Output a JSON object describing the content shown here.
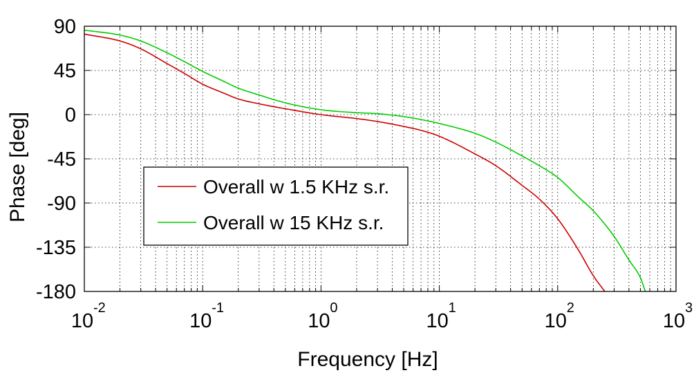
{
  "chart_data": {
    "type": "line",
    "title": "",
    "xlabel": "Frequency   [Hz]",
    "ylabel": "Phase   [deg]",
    "xscale": "log",
    "xlim": [
      0.01,
      1000
    ],
    "ylim": [
      -180,
      90
    ],
    "x_ticks": [
      {
        "base": "10",
        "exp": "-2"
      },
      {
        "base": "10",
        "exp": "-1"
      },
      {
        "base": "10",
        "exp": "0"
      },
      {
        "base": "10",
        "exp": "1"
      },
      {
        "base": "10",
        "exp": "2"
      },
      {
        "base": "10",
        "exp": "3"
      }
    ],
    "y_ticks": [
      "90",
      "45",
      "0",
      "-45",
      "-90",
      "-135",
      "-180"
    ],
    "y_tick_values": [
      90,
      45,
      0,
      -45,
      -90,
      -135,
      -180
    ],
    "grid": true,
    "legend_position": "center-left",
    "series": [
      {
        "name": "Overall w 1.5 KHz s.r.",
        "color": "#cc0000",
        "x": [
          0.01,
          0.02,
          0.03,
          0.05,
          0.07,
          0.1,
          0.15,
          0.2,
          0.3,
          0.5,
          1,
          2,
          3,
          5,
          7,
          10,
          20,
          30,
          50,
          70,
          100,
          150,
          200,
          250
        ],
        "y": [
          82,
          75,
          67,
          52,
          42,
          31,
          22,
          16,
          11,
          6,
          0,
          -4,
          -7,
          -12,
          -16,
          -22,
          -40,
          -52,
          -72,
          -86,
          -106,
          -138,
          -164,
          -180
        ]
      },
      {
        "name": "Overall w 15 KHz s.r.",
        "color": "#00cc00",
        "x": [
          0.01,
          0.02,
          0.03,
          0.05,
          0.07,
          0.1,
          0.15,
          0.2,
          0.3,
          0.5,
          1,
          2,
          3,
          5,
          7,
          10,
          20,
          30,
          50,
          70,
          100,
          150,
          200,
          300,
          400,
          500,
          550
        ],
        "y": [
          86,
          81,
          75,
          63,
          54,
          44,
          34,
          27,
          20,
          12,
          5,
          2,
          1,
          -2,
          -5,
          -9,
          -19,
          -28,
          -42,
          -52,
          -64,
          -84,
          -98,
          -124,
          -148,
          -166,
          -180
        ]
      }
    ]
  }
}
